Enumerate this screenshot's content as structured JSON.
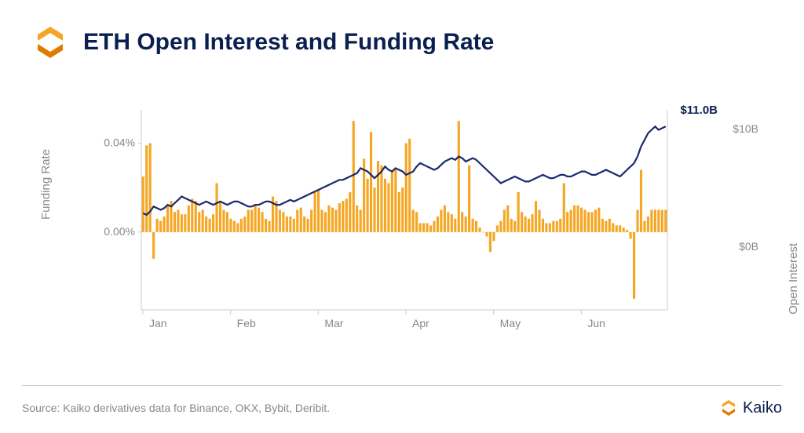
{
  "brand": {
    "name": "Kaiko",
    "logo_color_primary": "#f5a623",
    "logo_color_secondary": "#e07b00"
  },
  "title": "ETH Open Interest and Funding Rate",
  "chart": {
    "type": "combo-bar-line",
    "background_color": "#ffffff",
    "grid_color": "#dddddd",
    "axis_color": "#cccccc",
    "tick_color": "#888888",
    "tick_fontsize": 14,
    "x_categories": [
      "Jan",
      "Feb",
      "Mar",
      "Apr",
      "May",
      "Jun"
    ],
    "left_axis": {
      "label": "Funding Rate",
      "ticks": [
        0.0,
        0.04
      ],
      "tick_format_percent": true,
      "min": -0.035,
      "max": 0.055
    },
    "right_axis": {
      "label": "Open Interest",
      "ticks": [
        "$0B",
        "$10B"
      ],
      "min": 0,
      "max": 12
    },
    "callout": {
      "text": "$11.0B",
      "color": "#0b2050"
    },
    "bar_series": {
      "name": "Funding Rate",
      "color": "#f5a623",
      "bar_width": 0.7,
      "values_pct": [
        0.025,
        0.039,
        0.04,
        -0.012,
        0.006,
        0.005,
        0.007,
        0.012,
        0.014,
        0.009,
        0.01,
        0.008,
        0.008,
        0.012,
        0.015,
        0.014,
        0.009,
        0.01,
        0.007,
        0.006,
        0.008,
        0.022,
        0.014,
        0.01,
        0.009,
        0.006,
        0.005,
        0.004,
        0.006,
        0.007,
        0.01,
        0.01,
        0.012,
        0.011,
        0.009,
        0.006,
        0.005,
        0.016,
        0.014,
        0.01,
        0.009,
        0.007,
        0.007,
        0.006,
        0.01,
        0.011,
        0.007,
        0.006,
        0.01,
        0.018,
        0.019,
        0.01,
        0.009,
        0.012,
        0.011,
        0.01,
        0.013,
        0.014,
        0.015,
        0.018,
        0.05,
        0.012,
        0.01,
        0.033,
        0.024,
        0.045,
        0.02,
        0.032,
        0.03,
        0.024,
        0.022,
        0.028,
        0.029,
        0.018,
        0.02,
        0.04,
        0.042,
        0.01,
        0.009,
        0.004,
        0.004,
        0.004,
        0.003,
        0.005,
        0.007,
        0.01,
        0.012,
        0.009,
        0.008,
        0.006,
        0.05,
        0.009,
        0.007,
        0.03,
        0.006,
        0.005,
        0.002,
        0.0,
        -0.002,
        -0.009,
        -0.004,
        0.003,
        0.005,
        0.01,
        0.012,
        0.006,
        0.005,
        0.018,
        0.009,
        0.007,
        0.006,
        0.008,
        0.014,
        0.01,
        0.006,
        0.004,
        0.004,
        0.005,
        0.005,
        0.006,
        0.022,
        0.009,
        0.01,
        0.012,
        0.012,
        0.011,
        0.01,
        0.009,
        0.009,
        0.01,
        0.011,
        0.006,
        0.005,
        0.006,
        0.004,
        0.003,
        0.003,
        0.002,
        0.001,
        -0.003,
        -0.03,
        0.01,
        0.028,
        0.005,
        0.007,
        0.01,
        0.01,
        0.01,
        0.01,
        0.01
      ]
    },
    "line_series": {
      "name": "Open Interest",
      "color": "#1a2a6c",
      "line_width": 2.2,
      "values_b": [
        5.8,
        5.7,
        5.9,
        6.2,
        6.1,
        6.0,
        6.1,
        6.3,
        6.2,
        6.4,
        6.6,
        6.8,
        6.7,
        6.6,
        6.5,
        6.4,
        6.3,
        6.4,
        6.5,
        6.4,
        6.3,
        6.4,
        6.5,
        6.4,
        6.3,
        6.4,
        6.5,
        6.5,
        6.4,
        6.3,
        6.2,
        6.2,
        6.3,
        6.3,
        6.4,
        6.5,
        6.5,
        6.4,
        6.3,
        6.3,
        6.4,
        6.5,
        6.6,
        6.5,
        6.6,
        6.7,
        6.8,
        6.9,
        7.0,
        7.1,
        7.2,
        7.3,
        7.4,
        7.5,
        7.6,
        7.7,
        7.8,
        7.8,
        7.9,
        8.0,
        8.1,
        8.2,
        8.5,
        8.4,
        8.3,
        8.1,
        7.9,
        8.1,
        8.3,
        8.6,
        8.4,
        8.3,
        8.5,
        8.4,
        8.3,
        8.1,
        8.2,
        8.3,
        8.6,
        8.8,
        8.7,
        8.6,
        8.5,
        8.4,
        8.5,
        8.7,
        8.9,
        9.0,
        9.1,
        9.0,
        9.2,
        9.1,
        8.9,
        9.0,
        9.1,
        9.0,
        8.8,
        8.6,
        8.4,
        8.2,
        8.0,
        7.8,
        7.6,
        7.7,
        7.8,
        7.9,
        8.0,
        7.9,
        7.8,
        7.7,
        7.7,
        7.8,
        7.9,
        8.0,
        8.1,
        8.0,
        7.9,
        7.9,
        8.0,
        8.1,
        8.1,
        8.0,
        8.0,
        8.1,
        8.2,
        8.3,
        8.3,
        8.2,
        8.1,
        8.1,
        8.2,
        8.3,
        8.4,
        8.3,
        8.2,
        8.1,
        8.0,
        8.2,
        8.4,
        8.6,
        8.8,
        9.2,
        9.8,
        10.2,
        10.6,
        10.8,
        11.0,
        10.8,
        10.9,
        11.0
      ]
    }
  },
  "source": "Source: Kaiko derivatives data for Binance, OKX, Bybit, Deribit."
}
